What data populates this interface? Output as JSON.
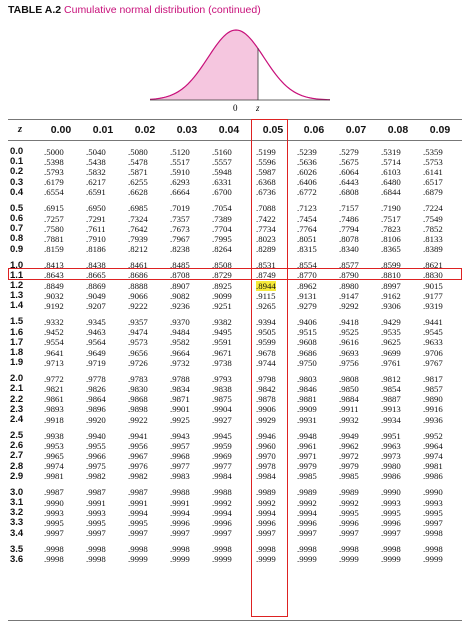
{
  "title": {
    "number": "TABLE A.2",
    "description": "Cumulative normal distribution (continued)"
  },
  "figure": {
    "axis_labels": [
      "0",
      "z"
    ],
    "shade_color": "#f5c6df",
    "curve_color": "#c8107a"
  },
  "highlight": {
    "box_color": "#d22222",
    "cell_color": "#f6ea3a",
    "row_index": 12,
    "col_index": 5
  },
  "table": {
    "z_header": "z",
    "columns": [
      "0.00",
      "0.01",
      "0.02",
      "0.03",
      "0.04",
      "0.05",
      "0.06",
      "0.07",
      "0.08",
      "0.09"
    ],
    "rows": [
      {
        "z": "0.0",
        "values": [
          ".5000",
          ".5040",
          ".5080",
          ".5120",
          ".5160",
          ".5199",
          ".5239",
          ".5279",
          ".5319",
          ".5359"
        ]
      },
      {
        "z": "0.1",
        "values": [
          ".5398",
          ".5438",
          ".5478",
          ".5517",
          ".5557",
          ".5596",
          ".5636",
          ".5675",
          ".5714",
          ".5753"
        ]
      },
      {
        "z": "0.2",
        "values": [
          ".5793",
          ".5832",
          ".5871",
          ".5910",
          ".5948",
          ".5987",
          ".6026",
          ".6064",
          ".6103",
          ".6141"
        ]
      },
      {
        "z": "0.3",
        "values": [
          ".6179",
          ".6217",
          ".6255",
          ".6293",
          ".6331",
          ".6368",
          ".6406",
          ".6443",
          ".6480",
          ".6517"
        ]
      },
      {
        "z": "0.4",
        "values": [
          ".6554",
          ".6591",
          ".6628",
          ".6664",
          ".6700",
          ".6736",
          ".6772",
          ".6808",
          ".6844",
          ".6879"
        ]
      },
      {
        "z": "0.5",
        "values": [
          ".6915",
          ".6950",
          ".6985",
          ".7019",
          ".7054",
          ".7088",
          ".7123",
          ".7157",
          ".7190",
          ".7224"
        ]
      },
      {
        "z": "0.6",
        "values": [
          ".7257",
          ".7291",
          ".7324",
          ".7357",
          ".7389",
          ".7422",
          ".7454",
          ".7486",
          ".7517",
          ".7549"
        ]
      },
      {
        "z": "0.7",
        "values": [
          ".7580",
          ".7611",
          ".7642",
          ".7673",
          ".7704",
          ".7734",
          ".7764",
          ".7794",
          ".7823",
          ".7852"
        ]
      },
      {
        "z": "0.8",
        "values": [
          ".7881",
          ".7910",
          ".7939",
          ".7967",
          ".7995",
          ".8023",
          ".8051",
          ".8078",
          ".8106",
          ".8133"
        ]
      },
      {
        "z": "0.9",
        "values": [
          ".8159",
          ".8186",
          ".8212",
          ".8238",
          ".8264",
          ".8289",
          ".8315",
          ".8340",
          ".8365",
          ".8389"
        ]
      },
      {
        "z": "1.0",
        "values": [
          ".8413",
          ".8438",
          ".8461",
          ".8485",
          ".8508",
          ".8531",
          ".8554",
          ".8577",
          ".8599",
          ".8621"
        ]
      },
      {
        "z": "1.1",
        "values": [
          ".8643",
          ".8665",
          ".8686",
          ".8708",
          ".8729",
          ".8749",
          ".8770",
          ".8790",
          ".8810",
          ".8830"
        ]
      },
      {
        "z": "1.2",
        "values": [
          ".8849",
          ".8869",
          ".8888",
          ".8907",
          ".8925",
          ".8944",
          ".8962",
          ".8980",
          ".8997",
          ".9015"
        ]
      },
      {
        "z": "1.3",
        "values": [
          ".9032",
          ".9049",
          ".9066",
          ".9082",
          ".9099",
          ".9115",
          ".9131",
          ".9147",
          ".9162",
          ".9177"
        ]
      },
      {
        "z": "1.4",
        "values": [
          ".9192",
          ".9207",
          ".9222",
          ".9236",
          ".9251",
          ".9265",
          ".9279",
          ".9292",
          ".9306",
          ".9319"
        ]
      },
      {
        "z": "1.5",
        "values": [
          ".9332",
          ".9345",
          ".9357",
          ".9370",
          ".9382",
          ".9394",
          ".9406",
          ".9418",
          ".9429",
          ".9441"
        ]
      },
      {
        "z": "1.6",
        "values": [
          ".9452",
          ".9463",
          ".9474",
          ".9484",
          ".9495",
          ".9505",
          ".9515",
          ".9525",
          ".9535",
          ".9545"
        ]
      },
      {
        "z": "1.7",
        "values": [
          ".9554",
          ".9564",
          ".9573",
          ".9582",
          ".9591",
          ".9599",
          ".9608",
          ".9616",
          ".9625",
          ".9633"
        ]
      },
      {
        "z": "1.8",
        "values": [
          ".9641",
          ".9649",
          ".9656",
          ".9664",
          ".9671",
          ".9678",
          ".9686",
          ".9693",
          ".9699",
          ".9706"
        ]
      },
      {
        "z": "1.9",
        "values": [
          ".9713",
          ".9719",
          ".9726",
          ".9732",
          ".9738",
          ".9744",
          ".9750",
          ".9756",
          ".9761",
          ".9767"
        ]
      },
      {
        "z": "2.0",
        "values": [
          ".9772",
          ".9778",
          ".9783",
          ".9788",
          ".9793",
          ".9798",
          ".9803",
          ".9808",
          ".9812",
          ".9817"
        ]
      },
      {
        "z": "2.1",
        "values": [
          ".9821",
          ".9826",
          ".9830",
          ".9834",
          ".9838",
          ".9842",
          ".9846",
          ".9850",
          ".9854",
          ".9857"
        ]
      },
      {
        "z": "2.2",
        "values": [
          ".9861",
          ".9864",
          ".9868",
          ".9871",
          ".9875",
          ".9878",
          ".9881",
          ".9884",
          ".9887",
          ".9890"
        ]
      },
      {
        "z": "2.3",
        "values": [
          ".9893",
          ".9896",
          ".9898",
          ".9901",
          ".9904",
          ".9906",
          ".9909",
          ".9911",
          ".9913",
          ".9916"
        ]
      },
      {
        "z": "2.4",
        "values": [
          ".9918",
          ".9920",
          ".9922",
          ".9925",
          ".9927",
          ".9929",
          ".9931",
          ".9932",
          ".9934",
          ".9936"
        ]
      },
      {
        "z": "2.5",
        "values": [
          ".9938",
          ".9940",
          ".9941",
          ".9943",
          ".9945",
          ".9946",
          ".9948",
          ".9949",
          ".9951",
          ".9952"
        ]
      },
      {
        "z": "2.6",
        "values": [
          ".9953",
          ".9955",
          ".9956",
          ".9957",
          ".9959",
          ".9960",
          ".9961",
          ".9962",
          ".9963",
          ".9964"
        ]
      },
      {
        "z": "2.7",
        "values": [
          ".9965",
          ".9966",
          ".9967",
          ".9968",
          ".9969",
          ".9970",
          ".9971",
          ".9972",
          ".9973",
          ".9974"
        ]
      },
      {
        "z": "2.8",
        "values": [
          ".9974",
          ".9975",
          ".9976",
          ".9977",
          ".9977",
          ".9978",
          ".9979",
          ".9979",
          ".9980",
          ".9981"
        ]
      },
      {
        "z": "2.9",
        "values": [
          ".9981",
          ".9982",
          ".9982",
          ".9983",
          ".9984",
          ".9984",
          ".9985",
          ".9985",
          ".9986",
          ".9986"
        ]
      },
      {
        "z": "3.0",
        "values": [
          ".9987",
          ".9987",
          ".9987",
          ".9988",
          ".9988",
          ".9989",
          ".9989",
          ".9989",
          ".9990",
          ".9990"
        ]
      },
      {
        "z": "3.1",
        "values": [
          ".9990",
          ".9991",
          ".9991",
          ".9991",
          ".9992",
          ".9992",
          ".9992",
          ".9992",
          ".9993",
          ".9993"
        ]
      },
      {
        "z": "3.2",
        "values": [
          ".9993",
          ".9993",
          ".9994",
          ".9994",
          ".9994",
          ".9994",
          ".9994",
          ".9995",
          ".9995",
          ".9995"
        ]
      },
      {
        "z": "3.3",
        "values": [
          ".9995",
          ".9995",
          ".9995",
          ".9996",
          ".9996",
          ".9996",
          ".9996",
          ".9996",
          ".9996",
          ".9997"
        ]
      },
      {
        "z": "3.4",
        "values": [
          ".9997",
          ".9997",
          ".9997",
          ".9997",
          ".9997",
          ".9997",
          ".9997",
          ".9997",
          ".9997",
          ".9998"
        ]
      },
      {
        "z": "3.5",
        "values": [
          ".9998",
          ".9998",
          ".9998",
          ".9998",
          ".9998",
          ".9998",
          ".9998",
          ".9998",
          ".9998",
          ".9998"
        ]
      },
      {
        "z": "3.6",
        "values": [
          ".9998",
          ".9998",
          ".9999",
          ".9999",
          ".9999",
          ".9999",
          ".9999",
          ".9999",
          ".9999",
          ".9999"
        ]
      }
    ]
  }
}
